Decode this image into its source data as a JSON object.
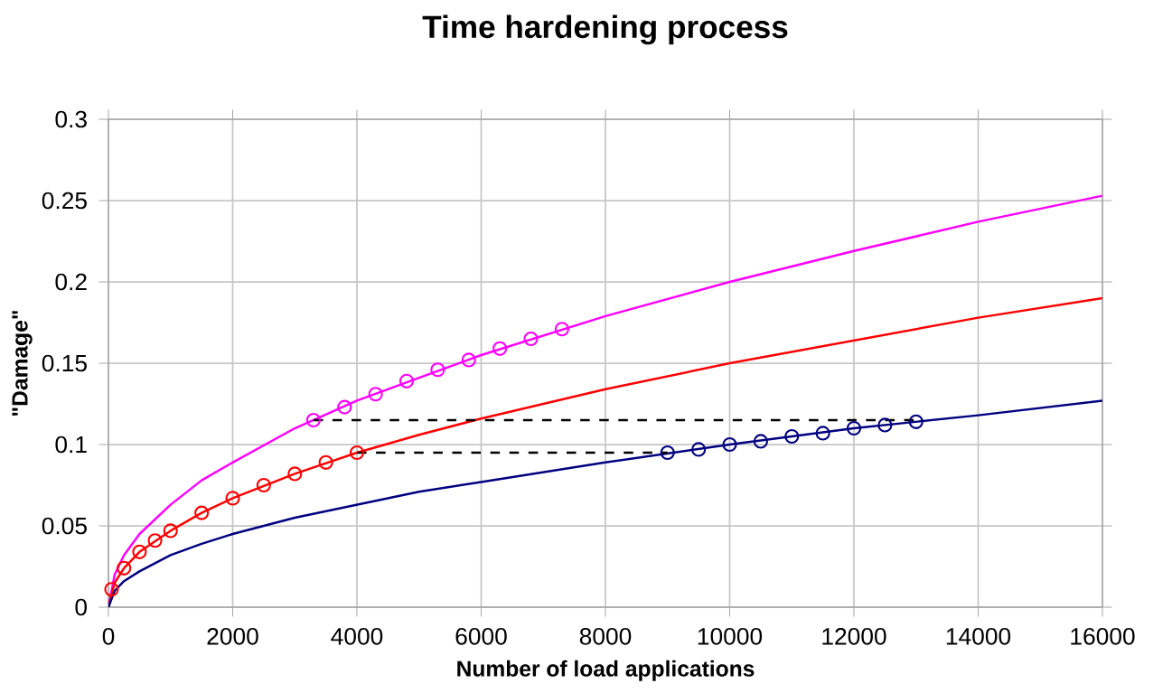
{
  "chart_data": {
    "type": "line",
    "title": "Time hardening process",
    "xlabel": "Number of load applications",
    "ylabel": "\"Damage\"",
    "xlim": [
      0,
      16000
    ],
    "xticks": [
      0,
      2000,
      4000,
      6000,
      8000,
      10000,
      12000,
      14000,
      16000
    ],
    "ylim": [
      0,
      0.3
    ],
    "yticks": [
      0,
      0.05,
      0.1,
      0.15,
      0.2,
      0.25,
      0.3
    ],
    "grid": true,
    "series": [
      {
        "color": "#ff00ff",
        "x": [
          0,
          100,
          250,
          500,
          1000,
          1500,
          2000,
          3000,
          4000,
          5000,
          6000,
          8000,
          10000,
          12000,
          14000,
          16000
        ],
        "values": [
          0,
          0.02,
          0.032,
          0.045,
          0.063,
          0.078,
          0.089,
          0.11,
          0.127,
          0.141,
          0.155,
          0.179,
          0.2,
          0.219,
          0.237,
          0.253
        ]
      },
      {
        "color": "#ff0000",
        "x": [
          0,
          100,
          250,
          500,
          1000,
          1500,
          2000,
          3000,
          4000,
          5000,
          6000,
          8000,
          10000,
          12000,
          14000,
          16000
        ],
        "values": [
          0,
          0.015,
          0.024,
          0.034,
          0.047,
          0.058,
          0.067,
          0.082,
          0.095,
          0.106,
          0.116,
          0.134,
          0.15,
          0.164,
          0.178,
          0.19
        ]
      },
      {
        "color": "#000080",
        "x": [
          0,
          100,
          250,
          500,
          1000,
          1500,
          2000,
          3000,
          4000,
          5000,
          6000,
          8000,
          10000,
          12000,
          14000,
          16000
        ],
        "values": [
          0,
          0.01,
          0.016,
          0.022,
          0.032,
          0.039,
          0.045,
          0.055,
          0.063,
          0.071,
          0.077,
          0.089,
          0.1,
          0.11,
          0.118,
          0.127
        ]
      },
      {
        "type": "scatter",
        "marker": "circle",
        "color": "#ff0000",
        "x": [
          50,
          250,
          500,
          750,
          1000,
          1500,
          2000,
          2500,
          3000,
          3500,
          4000
        ],
        "values": [
          0.011,
          0.024,
          0.034,
          0.041,
          0.047,
          0.058,
          0.067,
          0.075,
          0.082,
          0.089,
          0.095
        ]
      },
      {
        "type": "scatter",
        "marker": "circle",
        "color": "#ff00ff",
        "x": [
          3300,
          3800,
          4300,
          4800,
          5300,
          5800,
          6300,
          6800,
          7300
        ],
        "values": [
          0.115,
          0.123,
          0.131,
          0.139,
          0.146,
          0.152,
          0.159,
          0.165,
          0.171
        ]
      },
      {
        "type": "scatter",
        "marker": "circle",
        "color": "#000080",
        "x": [
          9000,
          9500,
          10000,
          10500,
          11000,
          11500,
          12000,
          12500,
          13000
        ],
        "values": [
          0.095,
          0.097,
          0.1,
          0.102,
          0.105,
          0.107,
          0.11,
          0.112,
          0.114
        ]
      },
      {
        "line_style": "dashed",
        "color": "#000000",
        "x": [
          3300,
          13000
        ],
        "values": [
          0.115,
          0.115
        ]
      },
      {
        "line_style": "dashed",
        "color": "#000000",
        "x": [
          4000,
          9000
        ],
        "values": [
          0.095,
          0.095
        ]
      }
    ]
  }
}
